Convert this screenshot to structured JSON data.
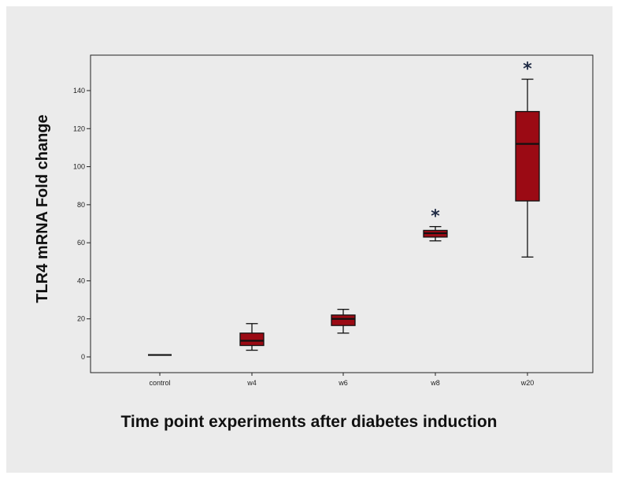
{
  "chart_data": {
    "type": "box",
    "ylabel": "TLR4 mRNA Fold change",
    "xlabel": "Time point experiments after diabetes induction",
    "ylim": [
      -8,
      158
    ],
    "yticks": [
      0,
      20,
      40,
      60,
      80,
      100,
      120,
      140
    ],
    "categories": [
      "control",
      "w4",
      "w6",
      "w8",
      "w20"
    ],
    "boxes": [
      {
        "category": "control",
        "min": 1,
        "q1": 1,
        "median": 1,
        "q3": 1,
        "max": 1,
        "annotation": ""
      },
      {
        "category": "w4",
        "min": 3.5,
        "q1": 6,
        "median": 8.5,
        "q3": 12.5,
        "max": 17.5,
        "annotation": ""
      },
      {
        "category": "w6",
        "min": 12.5,
        "q1": 16.5,
        "median": 20,
        "q3": 22,
        "max": 25,
        "annotation": ""
      },
      {
        "category": "w8",
        "min": 61,
        "q1": 63,
        "median": 65,
        "q3": 66.5,
        "max": 68.5,
        "annotation": "*"
      },
      {
        "category": "w20",
        "min": 52.5,
        "q1": 82,
        "median": 112,
        "q3": 129,
        "max": 146,
        "annotation": "*"
      }
    ],
    "box_color": "#9b0a14",
    "grid": false,
    "legend": "none"
  }
}
